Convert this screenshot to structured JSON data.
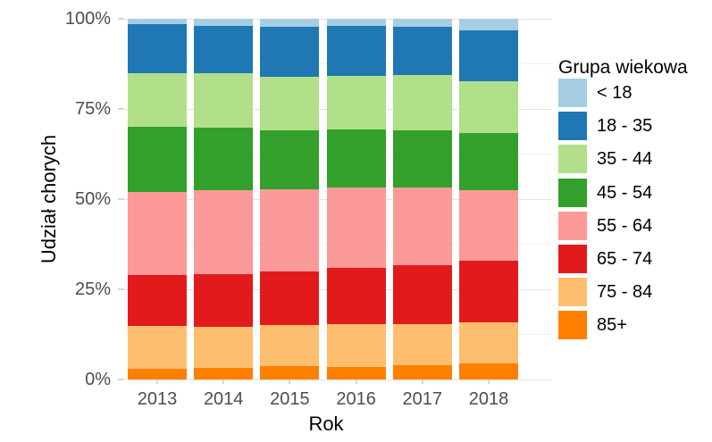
{
  "chart_data": {
    "type": "bar",
    "stacked": true,
    "percent": true,
    "title": "",
    "xlabel": "Rok",
    "ylabel": "Udział chorych",
    "categories": [
      "2013",
      "2014",
      "2015",
      "2016",
      "2017",
      "2018"
    ],
    "y_ticks": [
      {
        "label": "0%",
        "value": 0
      },
      {
        "label": "25%",
        "value": 25
      },
      {
        "label": "50%",
        "value": 50
      },
      {
        "label": "75%",
        "value": 75
      },
      {
        "label": "100%",
        "value": 100
      }
    ],
    "minor_gridlines": [
      12.5,
      37.5,
      62.5,
      87.5
    ],
    "ylim": [
      0,
      100
    ],
    "grid": "major+minor",
    "legend_position": "right",
    "legend_title": "Grupa wiekowa",
    "legend_order": [
      "< 18",
      "18 - 35",
      "35 - 44",
      "45 - 54",
      "55 - 64",
      "65 - 74",
      "75 - 84",
      "85+"
    ],
    "series": [
      {
        "name": "85+",
        "color": "#ff7f00",
        "values": [
          3.0,
          3.3,
          3.6,
          3.4,
          4.0,
          4.4
        ]
      },
      {
        "name": "75 - 84",
        "color": "#fdbf6f",
        "values": [
          11.9,
          11.4,
          11.5,
          12.0,
          11.4,
          11.5
        ]
      },
      {
        "name": "65 - 74",
        "color": "#e31a1c",
        "values": [
          14.1,
          14.6,
          14.9,
          15.5,
          16.4,
          17.0
        ]
      },
      {
        "name": "55 - 64",
        "color": "#fb9a99",
        "values": [
          23.1,
          23.3,
          22.8,
          22.4,
          21.5,
          19.7
        ]
      },
      {
        "name": "45 - 54",
        "color": "#33a02c",
        "values": [
          17.9,
          17.3,
          16.2,
          16.1,
          15.7,
          15.8
        ]
      },
      {
        "name": "35 - 44",
        "color": "#b2df8a",
        "values": [
          14.8,
          14.9,
          14.8,
          14.8,
          15.5,
          14.4
        ]
      },
      {
        "name": "18 - 35",
        "color": "#1f78b4",
        "values": [
          13.7,
          13.2,
          14.0,
          13.8,
          13.3,
          14.0
        ]
      },
      {
        "name": "< 18",
        "color": "#a6cee3",
        "values": [
          1.5,
          2.0,
          2.2,
          2.0,
          2.2,
          3.2
        ]
      }
    ]
  },
  "layout_colors": {
    "background": "#ffffff",
    "major_grid": "#e3e3e3",
    "minor_grid": "#f1f1f1",
    "tick_text": "#4d4d4d",
    "title_text": "#000000"
  }
}
